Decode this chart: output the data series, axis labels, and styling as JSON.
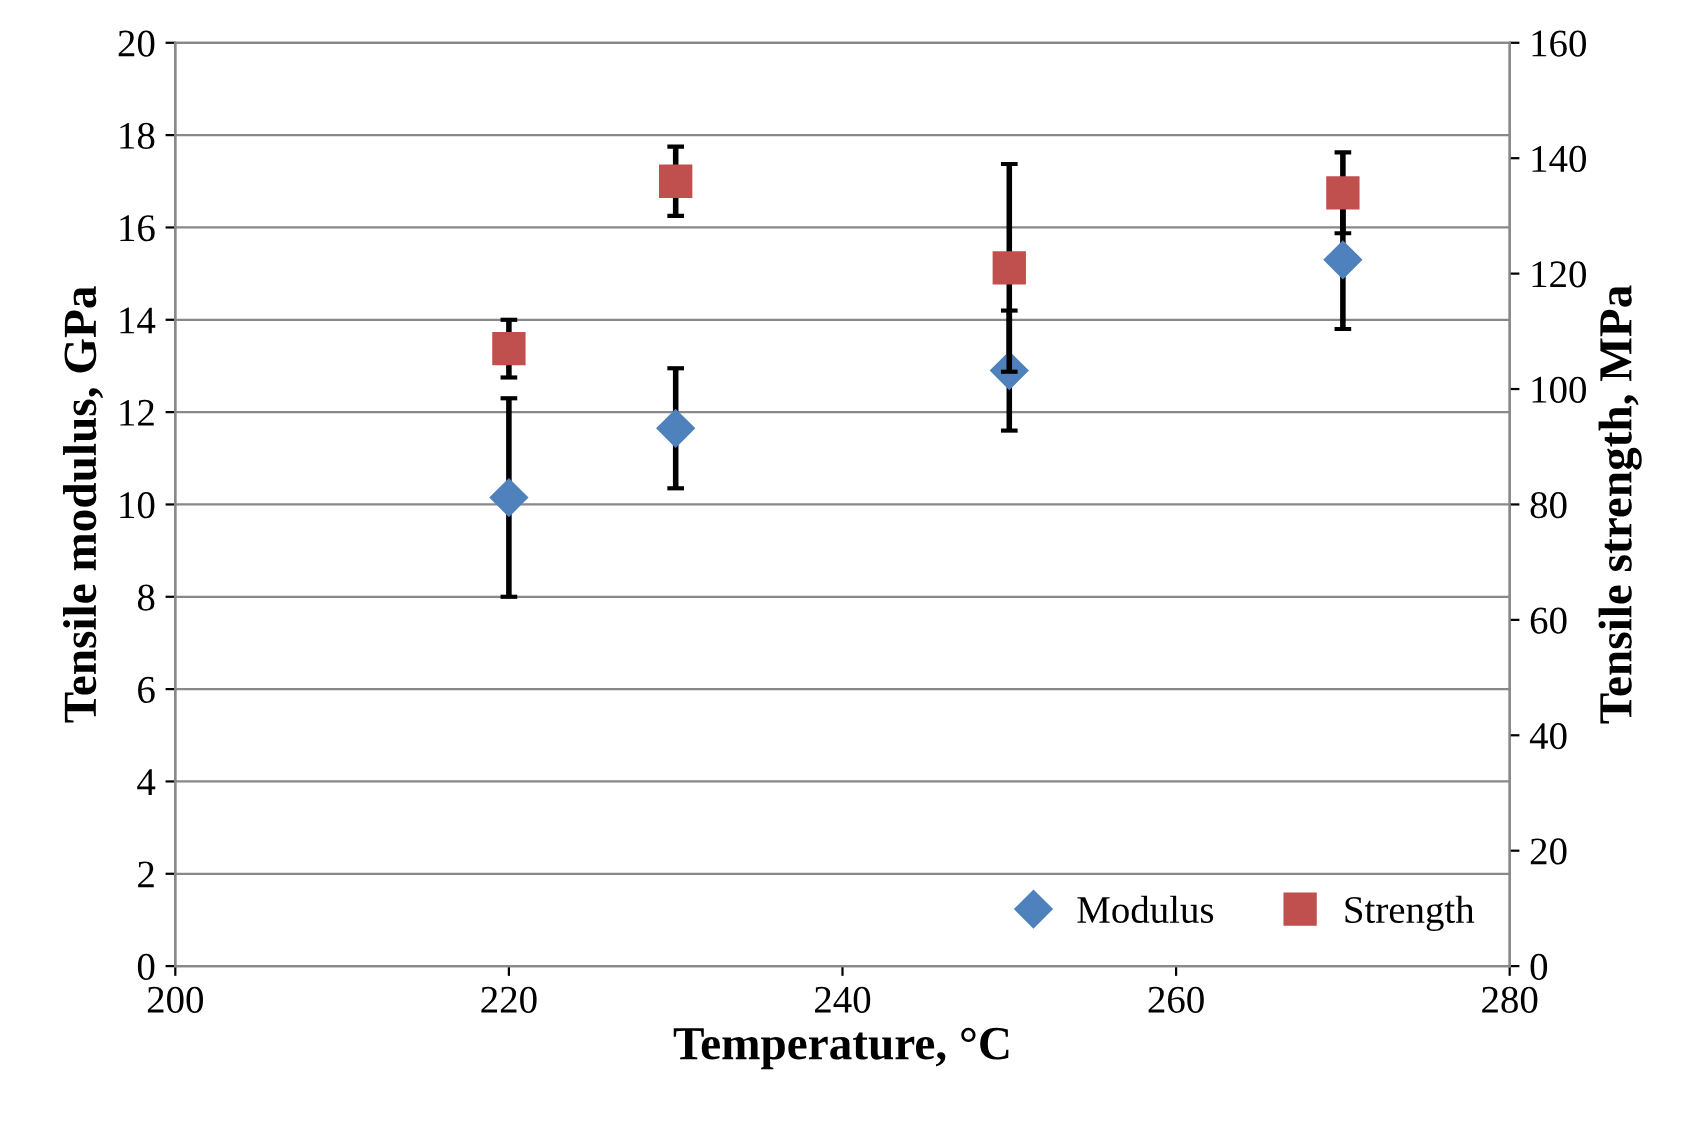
{
  "chart_data": {
    "type": "scatter",
    "xlabel": "Temperature, °C",
    "ylabel": "Tensile modulus, GPa",
    "y2label": "Tensile strength, MPa",
    "x": [
      220,
      230,
      250,
      270
    ],
    "series": [
      {
        "name": "Modulus",
        "color": "#4f81bd",
        "marker": "diamond",
        "values": [
          10.15,
          11.65,
          12.9,
          15.3
        ],
        "errors": [
          2.15,
          1.3,
          1.3,
          1.5
        ]
      },
      {
        "name": "Strength",
        "color": "#c0504d",
        "marker": "square",
        "axis": "y2",
        "values": [
          107,
          136,
          121,
          134
        ],
        "errors": [
          5,
          6,
          18,
          7
        ]
      }
    ],
    "xlim": [
      200,
      280
    ],
    "xticks": [
      200,
      220,
      240,
      260,
      280
    ],
    "ylim": [
      0,
      20
    ],
    "yticks": [
      0,
      2,
      4,
      6,
      8,
      10,
      12,
      14,
      16,
      18,
      20
    ],
    "y2lim": [
      0,
      160
    ],
    "y2ticks": [
      0,
      20,
      40,
      60,
      80,
      100,
      120,
      140,
      160
    ],
    "grid": "y",
    "legend": "bottom right"
  }
}
